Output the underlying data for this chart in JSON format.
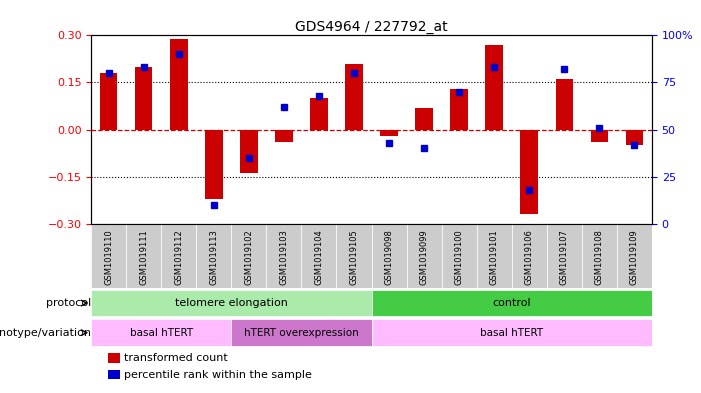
{
  "title": "GDS4964 / 227792_at",
  "samples": [
    "GSM1019110",
    "GSM1019111",
    "GSM1019112",
    "GSM1019113",
    "GSM1019102",
    "GSM1019103",
    "GSM1019104",
    "GSM1019105",
    "GSM1019098",
    "GSM1019099",
    "GSM1019100",
    "GSM1019101",
    "GSM1019106",
    "GSM1019107",
    "GSM1019108",
    "GSM1019109"
  ],
  "transformed_count": [
    0.18,
    0.2,
    0.29,
    -0.22,
    -0.14,
    -0.04,
    0.1,
    0.21,
    -0.02,
    0.07,
    0.13,
    0.27,
    -0.27,
    0.16,
    -0.04,
    -0.05
  ],
  "percentile_rank": [
    80,
    83,
    90,
    10,
    35,
    62,
    68,
    80,
    43,
    40,
    70,
    83,
    18,
    82,
    51,
    42
  ],
  "ylim_left": [
    -0.3,
    0.3
  ],
  "ylim_right": [
    0,
    100
  ],
  "yticks_left": [
    -0.3,
    -0.15,
    0,
    0.15,
    0.3
  ],
  "yticks_right": [
    0,
    25,
    50,
    75,
    100
  ],
  "bar_color": "#cc0000",
  "dot_color": "#0000cc",
  "hline_color": "#cc0000",
  "dotted_line_color": "#000000",
  "protocol_groups": [
    {
      "label": "telomere elongation",
      "start": 0,
      "end": 7,
      "color": "#aaeaaa"
    },
    {
      "label": "control",
      "start": 8,
      "end": 15,
      "color": "#44cc44"
    }
  ],
  "genotype_groups": [
    {
      "label": "basal hTERT",
      "start": 0,
      "end": 3,
      "color": "#ffbbff"
    },
    {
      "label": "hTERT overexpression",
      "start": 4,
      "end": 7,
      "color": "#cc77cc"
    },
    {
      "label": "basal hTERT",
      "start": 8,
      "end": 15,
      "color": "#ffbbff"
    }
  ],
  "legend_items": [
    {
      "label": "transformed count",
      "color": "#cc0000"
    },
    {
      "label": "percentile rank within the sample",
      "color": "#0000cc"
    }
  ],
  "protocol_label": "protocol",
  "genotype_label": "genotype/variation",
  "bg_color_light": "#cccccc",
  "bg_color_dark": "#bbbbbb"
}
